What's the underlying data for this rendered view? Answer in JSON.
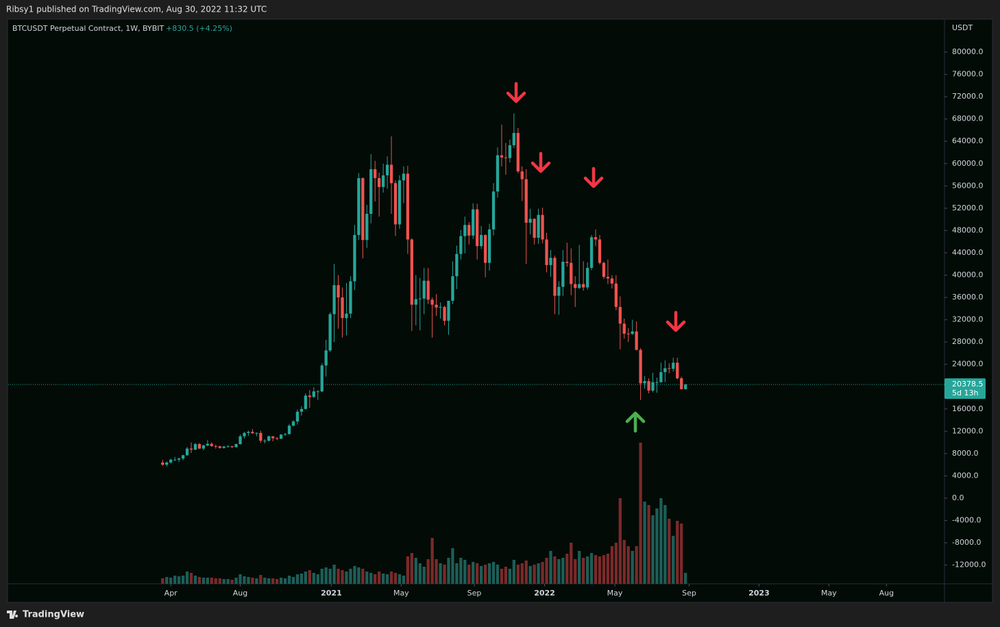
{
  "header": {
    "publisher": "Ribsy1 published on TradingView.com, Aug 30, 2022 11:32 UTC"
  },
  "footer": {
    "brand": "TradingView"
  },
  "chart_data": {
    "type": "candlestick",
    "title": "BTCUSDT Perpetual Contract, 1W, BYBIT",
    "change_label": "+830.5 (+4.25%)",
    "y_axis_label": "USDT",
    "last_price": 20378.5,
    "countdown": "5d 13h",
    "up_color": "#26a69a",
    "down_color": "#ef5350",
    "volume_up_color": "#1d5e58",
    "volume_down_color": "#7b2a2a",
    "grid": false,
    "xlim": [
      -37.8,
      191.4
    ],
    "xticks": [
      {
        "value": 2.0,
        "label": "Apr"
      },
      {
        "value": 19.0,
        "label": "Aug"
      },
      {
        "value": 41.3,
        "label": "2021"
      },
      {
        "value": 58.4,
        "label": "May"
      },
      {
        "value": 76.3,
        "label": "Sep"
      },
      {
        "value": 93.5,
        "label": "2022"
      },
      {
        "value": 110.7,
        "label": "May"
      },
      {
        "value": 128.9,
        "label": "Sep"
      },
      {
        "value": 146.0,
        "label": "2023"
      },
      {
        "value": 163.1,
        "label": "May"
      },
      {
        "value": 177.2,
        "label": "Aug"
      }
    ],
    "ylim": [
      -15360,
      85900
    ],
    "yticks": [
      {
        "value": 80000,
        "label": "80000.0"
      },
      {
        "value": 76000,
        "label": "76000.0"
      },
      {
        "value": 72000,
        "label": "72000.0"
      },
      {
        "value": 68000,
        "label": "68000.0"
      },
      {
        "value": 64000,
        "label": "64000.0"
      },
      {
        "value": 60000,
        "label": "60000.0"
      },
      {
        "value": 56000,
        "label": "56000.0"
      },
      {
        "value": 52000,
        "label": "52000.0"
      },
      {
        "value": 48000,
        "label": "48000.0"
      },
      {
        "value": 44000,
        "label": "44000.0"
      },
      {
        "value": 40000,
        "label": "40000.0"
      },
      {
        "value": 36000,
        "label": "36000.0"
      },
      {
        "value": 32000,
        "label": "32000.0"
      },
      {
        "value": 28000,
        "label": "28000.0"
      },
      {
        "value": 24000,
        "label": "24000.0"
      },
      {
        "value": 16000,
        "label": "16000.0"
      },
      {
        "value": 12000,
        "label": "12000.0"
      },
      {
        "value": 8000,
        "label": "8000.0"
      },
      {
        "value": 4000,
        "label": "4000.0"
      },
      {
        "value": 0,
        "label": "0.0"
      },
      {
        "value": -4000,
        "label": "-4000.0"
      },
      {
        "value": -8000,
        "label": "-8000.0"
      },
      {
        "value": -12000,
        "label": "-12000.0"
      }
    ],
    "open": [
      6400,
      6000,
      6400,
      6900,
      6900,
      7100,
      7700,
      8900,
      8700,
      9700,
      8900,
      9450,
      9750,
      9350,
      9300,
      9000,
      9250,
      9300,
      9150,
      9700,
      11100,
      11700,
      11900,
      11650,
      11700,
      10300,
      10300,
      11100,
      10750,
      10650,
      11400,
      11500,
      13000,
      13750,
      15500,
      16000,
      18400,
      18150,
      19150,
      19150,
      23800,
      26500,
      33000,
      38200,
      36000,
      32300,
      33100,
      38900,
      47200,
      57400,
      46300,
      51000,
      59000,
      57400,
      55800,
      57900,
      59800,
      56500,
      49100,
      57000,
      58200,
      46400,
      34700,
      35700,
      35800,
      39000,
      35600,
      34700,
      34200,
      34300,
      31800,
      35400,
      39800,
      43800,
      47000,
      49000,
      47100,
      51800,
      45200,
      47200,
      42200,
      48200,
      55000,
      61500,
      61100,
      61000,
      63300,
      65500,
      58600,
      57200,
      49400,
      50100,
      46700,
      50800,
      46400,
      41800,
      43100,
      36300,
      37900,
      42400,
      42200,
      38400,
      37700,
      38400,
      37800,
      41300,
      46800,
      46400,
      42200,
      39700,
      39400,
      38500,
      34300,
      31300,
      29500,
      29450,
      29900,
      26600,
      20600,
      21000,
      19300,
      20800,
      20800,
      22600,
      23300,
      23200,
      24300,
      21500,
      19548
    ],
    "high": [
      6900,
      6600,
      7100,
      7400,
      7300,
      7800,
      9200,
      10000,
      9900,
      9900,
      9600,
      10400,
      10000,
      9600,
      9400,
      9400,
      9500,
      9400,
      9800,
      11400,
      11900,
      12100,
      12400,
      11800,
      12100,
      10600,
      11200,
      11100,
      10950,
      11500,
      11700,
      13300,
      14000,
      15900,
      16500,
      18800,
      19400,
      19900,
      19400,
      24200,
      28400,
      33300,
      42000,
      40000,
      37800,
      38600,
      39800,
      49000,
      58300,
      57500,
      52600,
      61700,
      60500,
      58400,
      60000,
      61300,
      64900,
      57000,
      57900,
      59500,
      59600,
      46600,
      40000,
      39500,
      41300,
      41300,
      36000,
      36600,
      35100,
      34500,
      35400,
      42500,
      45300,
      48100,
      50500,
      49500,
      52900,
      52800,
      48800,
      47300,
      49200,
      56500,
      62900,
      67000,
      63700,
      64300,
      69000,
      66400,
      59500,
      59000,
      51900,
      50200,
      51900,
      52100,
      47600,
      44500,
      43500,
      38900,
      44500,
      45800,
      44800,
      39800,
      45400,
      42500,
      42300,
      47200,
      48200,
      47200,
      42400,
      42800,
      40000,
      40000,
      36200,
      32200,
      30500,
      32000,
      31700,
      26900,
      21900,
      21500,
      22500,
      21600,
      24300,
      24700,
      24200,
      25200,
      25200,
      21800,
      20500
    ],
    "low": [
      5800,
      5700,
      6200,
      6700,
      6500,
      6800,
      7600,
      8100,
      8600,
      8800,
      8600,
      9300,
      9200,
      8900,
      8900,
      8900,
      9100,
      9000,
      9100,
      9600,
      10700,
      11200,
      11500,
      11100,
      9900,
      9800,
      10200,
      10200,
      10400,
      10600,
      11200,
      11400,
      12900,
      13200,
      14800,
      15900,
      16200,
      18000,
      17600,
      19000,
      21800,
      26200,
      28000,
      30400,
      28800,
      29200,
      32300,
      37300,
      46300,
      43000,
      44900,
      49300,
      53200,
      50500,
      54800,
      55500,
      51000,
      47000,
      48300,
      52900,
      43800,
      30000,
      31000,
      30100,
      33000,
      34800,
      28800,
      32700,
      32200,
      31000,
      29300,
      34800,
      37500,
      42800,
      43900,
      45500,
      46500,
      42800,
      44700,
      39600,
      40800,
      47100,
      53900,
      59500,
      58000,
      60200,
      62800,
      58300,
      53300,
      42000,
      47300,
      45500,
      45600,
      45700,
      40500,
      39700,
      33000,
      32900,
      36300,
      41500,
      36400,
      34300,
      37500,
      37200,
      37400,
      40900,
      45200,
      41900,
      39300,
      38400,
      37600,
      33700,
      26700,
      28600,
      28000,
      29300,
      26500,
      17600,
      19600,
      18800,
      19000,
      18900,
      20700,
      20800,
      22400,
      22700,
      21300,
      19500,
      19520
    ],
    "close": [
      6000,
      6400,
      6900,
      6900,
      7100,
      7700,
      8900,
      8700,
      9700,
      8900,
      9450,
      9750,
      9350,
      9300,
      9000,
      9250,
      9300,
      9150,
      9700,
      11100,
      11700,
      11900,
      11650,
      11700,
      10300,
      10300,
      11100,
      10750,
      10650,
      11400,
      11500,
      13000,
      13750,
      15500,
      16000,
      18400,
      18150,
      19150,
      19150,
      23800,
      26500,
      33000,
      38200,
      36000,
      32300,
      33100,
      38900,
      47200,
      57400,
      46300,
      51000,
      59000,
      57400,
      55800,
      57900,
      59800,
      56500,
      49100,
      57000,
      58200,
      46400,
      34700,
      35700,
      35800,
      39000,
      35600,
      34700,
      34200,
      34300,
      31800,
      35400,
      39800,
      43800,
      47000,
      49000,
      47100,
      51800,
      45200,
      47200,
      42200,
      48200,
      55000,
      61500,
      61100,
      61000,
      63300,
      65500,
      58600,
      57200,
      49400,
      50100,
      46700,
      50800,
      46400,
      41800,
      43100,
      36300,
      37900,
      42400,
      42200,
      38400,
      37700,
      38400,
      37800,
      41300,
      46800,
      46400,
      42200,
      39700,
      39400,
      38500,
      34300,
      31300,
      29500,
      29450,
      29900,
      26600,
      20600,
      21000,
      19300,
      20800,
      20800,
      22600,
      23300,
      23200,
      24300,
      21500,
      19548,
      20378.5
    ],
    "volume": [
      8,
      10,
      9,
      12,
      11,
      12,
      18,
      16,
      12,
      10,
      9,
      9,
      9,
      8,
      8,
      7,
      7,
      6,
      9,
      14,
      11,
      10,
      9,
      8,
      13,
      9,
      8,
      8,
      7,
      9,
      8,
      12,
      10,
      14,
      15,
      18,
      20,
      16,
      14,
      22,
      24,
      22,
      28,
      22,
      20,
      18,
      22,
      26,
      24,
      22,
      18,
      16,
      14,
      18,
      15,
      14,
      18,
      16,
      14,
      12,
      40,
      45,
      38,
      30,
      25,
      36,
      67,
      36,
      30,
      28,
      38,
      52,
      30,
      38,
      35,
      28,
      32,
      30,
      26,
      28,
      30,
      32,
      28,
      22,
      25,
      22,
      35,
      28,
      30,
      34,
      26,
      28,
      30,
      32,
      38,
      48,
      40,
      36,
      38,
      44,
      60,
      36,
      48,
      38,
      40,
      45,
      42,
      40,
      42,
      44,
      55,
      60,
      125,
      64,
      55,
      48,
      55,
      206,
      120,
      115,
      100,
      110,
      125,
      115,
      95,
      70,
      92,
      88,
      16
    ]
  }
}
